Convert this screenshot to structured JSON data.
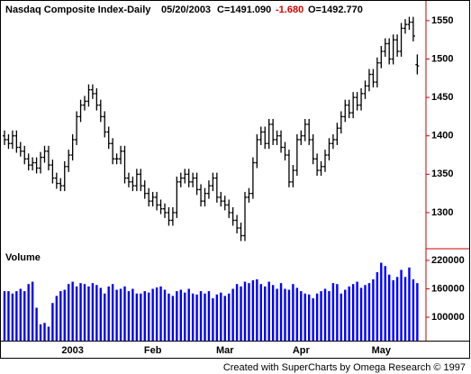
{
  "chart_data": [
    {
      "type": "ohlc",
      "title": "Nasdaq Composite Index-Daily",
      "date": "05/20/2003",
      "close_label": "C=1491.090",
      "change": "-1.680",
      "open_label": "O=1492.770",
      "categories": [
        null,
        null,
        null,
        null,
        null,
        null,
        null,
        null,
        null,
        null,
        null,
        null,
        null,
        null,
        null,
        null,
        null,
        "2003",
        null,
        null,
        null,
        null,
        null,
        null,
        null,
        null,
        null,
        null,
        null,
        null,
        null,
        null,
        null,
        null,
        null,
        null,
        null,
        "Feb",
        null,
        null,
        null,
        null,
        null,
        null,
        null,
        null,
        null,
        null,
        null,
        null,
        null,
        null,
        null,
        null,
        null,
        "Mar",
        null,
        null,
        null,
        null,
        null,
        null,
        null,
        null,
        null,
        null,
        null,
        null,
        null,
        null,
        null,
        null,
        null,
        null,
        "Apr",
        null,
        null,
        null,
        null,
        null,
        null,
        null,
        null,
        null,
        null,
        null,
        null,
        null,
        null,
        null,
        null,
        null,
        null,
        null,
        "May",
        null,
        null,
        null,
        null,
        null,
        null,
        null,
        null,
        null
      ],
      "open": [
        1400,
        1395,
        1390,
        1400,
        1385,
        1380,
        1370,
        1362,
        1365,
        1358,
        1372,
        1380,
        1362,
        1345,
        1338,
        1335,
        1360,
        1375,
        1395,
        1425,
        1440,
        1445,
        1460,
        1455,
        1440,
        1425,
        1405,
        1390,
        1370,
        1370,
        1380,
        1345,
        1340,
        1335,
        1350,
        1335,
        1325,
        1315,
        1320,
        1310,
        1305,
        1300,
        1290,
        1300,
        1340,
        1345,
        1350,
        1340,
        1345,
        1330,
        1315,
        1325,
        1335,
        1345,
        1320,
        1315,
        1310,
        1300,
        1290,
        1280,
        1270,
        1320,
        1325,
        1365,
        1395,
        1405,
        1390,
        1415,
        1395,
        1400,
        1385,
        1375,
        1340,
        1355,
        1395,
        1400,
        1415,
        1395,
        1370,
        1355,
        1360,
        1375,
        1390,
        1395,
        1410,
        1425,
        1440,
        1430,
        1450,
        1440,
        1455,
        1465,
        1480,
        1470,
        1495,
        1510,
        1520,
        1500,
        1525,
        1510,
        1540,
        1545,
        1548,
        1492.77
      ],
      "high": [
        1407,
        1402,
        1407,
        1407,
        1392,
        1387,
        1377,
        1372,
        1372,
        1379,
        1387,
        1387,
        1369,
        1352,
        1345,
        1367,
        1382,
        1402,
        1432,
        1447,
        1452,
        1467,
        1467,
        1462,
        1447,
        1432,
        1412,
        1397,
        1377,
        1387,
        1387,
        1352,
        1347,
        1357,
        1357,
        1342,
        1332,
        1327,
        1327,
        1317,
        1312,
        1307,
        1307,
        1347,
        1352,
        1357,
        1357,
        1352,
        1352,
        1337,
        1332,
        1342,
        1352,
        1352,
        1327,
        1322,
        1317,
        1307,
        1297,
        1287,
        1327,
        1332,
        1372,
        1402,
        1412,
        1412,
        1422,
        1422,
        1407,
        1407,
        1392,
        1382,
        1362,
        1402,
        1407,
        1422,
        1422,
        1402,
        1377,
        1367,
        1382,
        1397,
        1402,
        1417,
        1432,
        1447,
        1447,
        1457,
        1457,
        1462,
        1472,
        1487,
        1487,
        1502,
        1517,
        1527,
        1527,
        1532,
        1532,
        1547,
        1552,
        1555,
        1555,
        1506
      ],
      "low": [
        1388,
        1383,
        1383,
        1378,
        1373,
        1363,
        1355,
        1355,
        1351,
        1351,
        1365,
        1355,
        1338,
        1331,
        1328,
        1328,
        1353,
        1368,
        1388,
        1418,
        1433,
        1438,
        1448,
        1433,
        1418,
        1398,
        1383,
        1363,
        1363,
        1363,
        1338,
        1333,
        1328,
        1328,
        1328,
        1318,
        1308,
        1308,
        1303,
        1298,
        1293,
        1283,
        1283,
        1293,
        1333,
        1338,
        1333,
        1333,
        1323,
        1308,
        1308,
        1318,
        1328,
        1313,
        1308,
        1303,
        1293,
        1283,
        1273,
        1263,
        1263,
        1313,
        1318,
        1358,
        1388,
        1383,
        1383,
        1388,
        1388,
        1378,
        1368,
        1333,
        1333,
        1348,
        1388,
        1393,
        1388,
        1363,
        1348,
        1348,
        1353,
        1368,
        1383,
        1388,
        1403,
        1418,
        1423,
        1423,
        1433,
        1433,
        1448,
        1458,
        1463,
        1463,
        1488,
        1503,
        1493,
        1493,
        1503,
        1503,
        1533,
        1538,
        1523,
        1480
      ],
      "close": [
        1395,
        1390,
        1400,
        1385,
        1380,
        1370,
        1362,
        1365,
        1358,
        1372,
        1380,
        1362,
        1345,
        1338,
        1335,
        1360,
        1375,
        1395,
        1425,
        1440,
        1445,
        1460,
        1455,
        1440,
        1425,
        1405,
        1390,
        1370,
        1370,
        1380,
        1345,
        1340,
        1335,
        1350,
        1335,
        1325,
        1315,
        1320,
        1310,
        1305,
        1300,
        1290,
        1300,
        1340,
        1345,
        1350,
        1340,
        1345,
        1330,
        1315,
        1325,
        1335,
        1345,
        1320,
        1315,
        1310,
        1300,
        1290,
        1280,
        1270,
        1320,
        1325,
        1365,
        1395,
        1405,
        1390,
        1415,
        1395,
        1400,
        1385,
        1375,
        1340,
        1355,
        1395,
        1400,
        1415,
        1395,
        1370,
        1355,
        1360,
        1375,
        1390,
        1395,
        1410,
        1425,
        1440,
        1430,
        1450,
        1440,
        1455,
        1465,
        1480,
        1470,
        1495,
        1510,
        1520,
        1500,
        1525,
        1510,
        1540,
        1545,
        1548,
        1530,
        1491.09
      ],
      "color": "#000000",
      "ylim": [
        1253,
        1571
      ],
      "yticks": [
        1300,
        1350,
        1400,
        1450,
        1500,
        1550
      ]
    },
    {
      "type": "bar",
      "title": "Volume",
      "color": "#0000ff",
      "values": [
        155000,
        155000,
        150000,
        155000,
        160000,
        155000,
        170000,
        175000,
        120000,
        85000,
        88000,
        80000,
        130000,
        145000,
        155000,
        158000,
        170000,
        175000,
        165000,
        172000,
        170000,
        165000,
        172000,
        168000,
        162000,
        150000,
        165000,
        170000,
        158000,
        160000,
        165000,
        155000,
        160000,
        150000,
        150000,
        155000,
        152000,
        160000,
        163000,
        165000,
        158000,
        150000,
        145000,
        155000,
        158000,
        152000,
        160000,
        150000,
        148000,
        155000,
        150000,
        155000,
        140000,
        148000,
        152000,
        145000,
        150000,
        160000,
        170000,
        165000,
        175000,
        172000,
        178000,
        180000,
        170000,
        165000,
        175000,
        168000,
        160000,
        172000,
        160000,
        158000,
        170000,
        162000,
        155000,
        150000,
        148000,
        140000,
        150000,
        155000,
        160000,
        155000,
        172000,
        170000,
        150000,
        158000,
        165000,
        170000,
        175000,
        162000,
        168000,
        172000,
        180000,
        195000,
        215000,
        208000,
        190000,
        178000,
        185000,
        200000,
        185000,
        205000,
        180000,
        172000
      ],
      "ylim": [
        50500,
        237000
      ],
      "yticks": [
        100000,
        160000,
        220000
      ]
    }
  ],
  "footer": "Created with SuperCharts by Omega Research © 1997"
}
